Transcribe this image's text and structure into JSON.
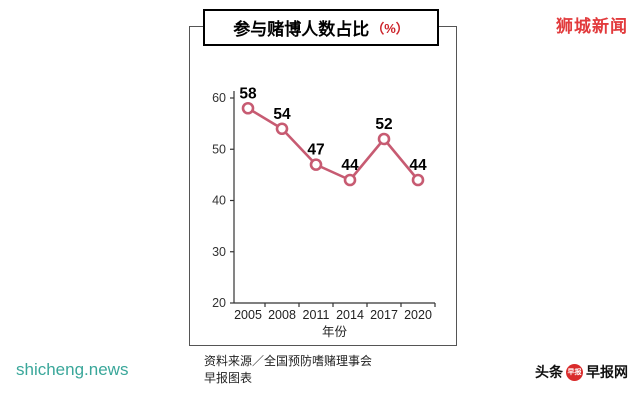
{
  "brand": {
    "name": "狮城新闻"
  },
  "chart": {
    "title": "参与赌博人数占比",
    "unit": "（%）"
  },
  "chart_data": {
    "type": "line",
    "categories": [
      "2005",
      "2008",
      "2011",
      "2014",
      "2017",
      "2020"
    ],
    "values": [
      58,
      54,
      47,
      44,
      52,
      44
    ],
    "title": "参与赌博人数占比（%）",
    "xlabel": "年份",
    "ylabel": "",
    "ylim": [
      20,
      60
    ],
    "yticks": [
      20,
      30,
      40,
      50,
      60
    ],
    "grid": false,
    "legend": "none",
    "line_color": "#c75b72",
    "marker": "open-circle"
  },
  "source": {
    "line1": "资料来源／全国预防嗜赌理事会",
    "line2": "早报图表"
  },
  "footer": {
    "site": "shicheng.news",
    "headline_label": "头条",
    "logo_text": "早报",
    "network_label": "早报网"
  },
  "colors": {
    "brand_red": "#e23b3d",
    "unit_red": "#cc2229",
    "site_teal": "#3aa79a",
    "logo_red": "#d92b2b",
    "line": "#c75b72",
    "ink": "#111111"
  }
}
